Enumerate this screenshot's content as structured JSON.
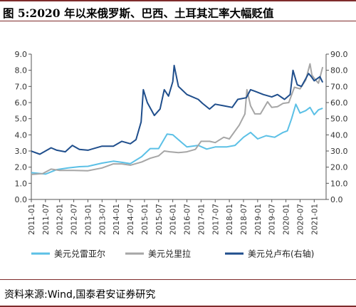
{
  "figure": {
    "title": "图 5:2020 年以来俄罗斯、巴西、土耳其汇率大幅贬值",
    "source": "资料来源:Wind,国泰君安证券研究"
  },
  "chart_data": {
    "type": "line",
    "x_ticks": [
      "2011-01",
      "2011-07",
      "2012-01",
      "2012-07",
      "2013-01",
      "2013-07",
      "2014-01",
      "2014-07",
      "2015-01",
      "2015-07",
      "2016-01",
      "2016-07",
      "2017-01",
      "2017-07",
      "2018-01",
      "2018-07",
      "2019-01",
      "2019-07",
      "2020-01",
      "2020-07",
      "2021-01"
    ],
    "left_axis": {
      "ylim": [
        0,
        9
      ],
      "ticks": [
        "0.0",
        "1.0",
        "2.0",
        "3.0",
        "4.0",
        "5.0",
        "6.0",
        "7.0",
        "8.0",
        "9.0"
      ]
    },
    "right_axis": {
      "ylim": [
        0,
        90
      ],
      "ticks": [
        "0.0",
        "10.0",
        "20.0",
        "30.0",
        "40.0",
        "50.0",
        "60.0",
        "70.0",
        "80.0",
        "90.0"
      ]
    },
    "series": [
      {
        "name": "美元兑雷亚尔",
        "axis": "left",
        "color": "#5bc0e6",
        "values": [
          [
            2011.0,
            1.66
          ],
          [
            2011.5,
            1.57
          ],
          [
            2011.9,
            1.85
          ],
          [
            2012.3,
            1.95
          ],
          [
            2012.7,
            2.03
          ],
          [
            2013.0,
            2.05
          ],
          [
            2013.5,
            2.25
          ],
          [
            2013.9,
            2.37
          ],
          [
            2014.2,
            2.3
          ],
          [
            2014.5,
            2.22
          ],
          [
            2014.9,
            2.65
          ],
          [
            2015.2,
            3.15
          ],
          [
            2015.5,
            3.15
          ],
          [
            2015.8,
            4.05
          ],
          [
            2016.0,
            4.0
          ],
          [
            2016.2,
            3.7
          ],
          [
            2016.5,
            3.25
          ],
          [
            2016.9,
            3.35
          ],
          [
            2017.2,
            3.12
          ],
          [
            2017.5,
            3.25
          ],
          [
            2017.9,
            3.25
          ],
          [
            2018.2,
            3.35
          ],
          [
            2018.5,
            3.85
          ],
          [
            2018.75,
            4.15
          ],
          [
            2019.0,
            3.75
          ],
          [
            2019.3,
            3.95
          ],
          [
            2019.6,
            3.85
          ],
          [
            2019.9,
            4.15
          ],
          [
            2020.05,
            4.25
          ],
          [
            2020.2,
            5.0
          ],
          [
            2020.35,
            5.9
          ],
          [
            2020.5,
            5.35
          ],
          [
            2020.7,
            5.5
          ],
          [
            2020.85,
            5.7
          ],
          [
            2021.0,
            5.25
          ],
          [
            2021.15,
            5.55
          ],
          [
            2021.3,
            5.65
          ]
        ]
      },
      {
        "name": "美元兑里拉",
        "axis": "left",
        "color": "#a6a6a6",
        "values": [
          [
            2011.0,
            1.55
          ],
          [
            2011.4,
            1.6
          ],
          [
            2011.7,
            1.88
          ],
          [
            2012.0,
            1.8
          ],
          [
            2012.5,
            1.8
          ],
          [
            2013.0,
            1.78
          ],
          [
            2013.5,
            1.95
          ],
          [
            2013.9,
            2.2
          ],
          [
            2014.2,
            2.2
          ],
          [
            2014.5,
            2.12
          ],
          [
            2014.9,
            2.32
          ],
          [
            2015.2,
            2.55
          ],
          [
            2015.5,
            2.7
          ],
          [
            2015.7,
            3.0
          ],
          [
            2015.9,
            2.95
          ],
          [
            2016.2,
            2.9
          ],
          [
            2016.5,
            2.95
          ],
          [
            2016.8,
            3.1
          ],
          [
            2017.0,
            3.6
          ],
          [
            2017.3,
            3.6
          ],
          [
            2017.5,
            3.52
          ],
          [
            2017.8,
            3.85
          ],
          [
            2018.0,
            3.75
          ],
          [
            2018.35,
            4.6
          ],
          [
            2018.55,
            5.3
          ],
          [
            2018.62,
            6.8
          ],
          [
            2018.75,
            5.8
          ],
          [
            2018.9,
            5.3
          ],
          [
            2019.1,
            5.3
          ],
          [
            2019.35,
            6.05
          ],
          [
            2019.5,
            5.7
          ],
          [
            2019.7,
            5.75
          ],
          [
            2019.9,
            5.95
          ],
          [
            2020.1,
            6.0
          ],
          [
            2020.3,
            6.95
          ],
          [
            2020.5,
            6.85
          ],
          [
            2020.7,
            7.4
          ],
          [
            2020.85,
            8.4
          ],
          [
            2020.92,
            7.7
          ],
          [
            2021.05,
            7.4
          ],
          [
            2021.15,
            7.2
          ],
          [
            2021.3,
            8.2
          ]
        ]
      },
      {
        "name": "美元兑卢布(右轴)",
        "axis": "right",
        "color": "#1f4e8c",
        "values": [
          [
            2011.0,
            29.9
          ],
          [
            2011.3,
            28.0
          ],
          [
            2011.7,
            32.0
          ],
          [
            2011.9,
            30.5
          ],
          [
            2012.2,
            29.5
          ],
          [
            2012.45,
            33.5
          ],
          [
            2012.7,
            31.0
          ],
          [
            2013.0,
            30.5
          ],
          [
            2013.5,
            33.0
          ],
          [
            2013.9,
            33.0
          ],
          [
            2014.2,
            36.0
          ],
          [
            2014.5,
            34.5
          ],
          [
            2014.7,
            37.0
          ],
          [
            2014.88,
            48.0
          ],
          [
            2014.96,
            68.0
          ],
          [
            2015.1,
            60.0
          ],
          [
            2015.35,
            52.0
          ],
          [
            2015.55,
            56.0
          ],
          [
            2015.7,
            68.0
          ],
          [
            2015.85,
            64.0
          ],
          [
            2016.0,
            73.0
          ],
          [
            2016.05,
            83.0
          ],
          [
            2016.2,
            70.0
          ],
          [
            2016.5,
            65.0
          ],
          [
            2016.9,
            62.0
          ],
          [
            2017.05,
            59.5
          ],
          [
            2017.3,
            56.0
          ],
          [
            2017.5,
            59.0
          ],
          [
            2017.8,
            58.0
          ],
          [
            2018.1,
            57.0
          ],
          [
            2018.3,
            62.0
          ],
          [
            2018.6,
            63.0
          ],
          [
            2018.75,
            68.0
          ],
          [
            2018.9,
            67.0
          ],
          [
            2019.2,
            65.0
          ],
          [
            2019.5,
            63.5
          ],
          [
            2019.7,
            65.0
          ],
          [
            2019.95,
            62.0
          ],
          [
            2020.15,
            65.0
          ],
          [
            2020.25,
            80.0
          ],
          [
            2020.4,
            71.0
          ],
          [
            2020.55,
            70.0
          ],
          [
            2020.8,
            78.0
          ],
          [
            2020.9,
            76.0
          ],
          [
            2021.0,
            73.5
          ],
          [
            2021.2,
            76.0
          ],
          [
            2021.3,
            72.5
          ]
        ]
      }
    ],
    "legend_placement": "bottom",
    "grid": false
  }
}
